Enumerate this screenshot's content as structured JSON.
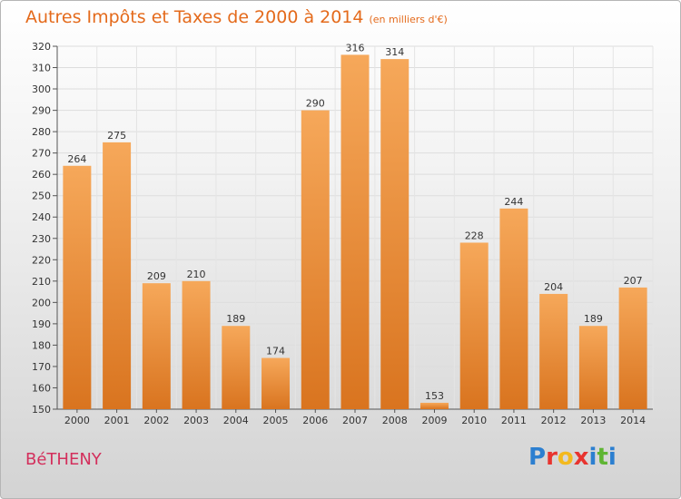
{
  "header": {
    "title": "Autres Impôts et Taxes de 2000 à 2014",
    "unit": "(en milliers d'€)"
  },
  "footer": {
    "commune": "BéTHENY",
    "brand_letters": [
      {
        "char": "P",
        "color": "#2c7fd0"
      },
      {
        "char": "r",
        "color": "#e8342f"
      },
      {
        "char": "o",
        "color": "#f3b91e"
      },
      {
        "char": "x",
        "color": "#e8342f"
      },
      {
        "char": "i",
        "color": "#2c7fd0"
      },
      {
        "char": "t",
        "color": "#5fb533"
      },
      {
        "char": "i",
        "color": "#2c7fd0"
      }
    ]
  },
  "chart_data": {
    "type": "bar",
    "title": "Autres Impôts et Taxes de 2000 à 2014",
    "subtitle": "(en milliers d'€)",
    "categories": [
      "2000",
      "2001",
      "2002",
      "2003",
      "2004",
      "2005",
      "2006",
      "2007",
      "2008",
      "2009",
      "2010",
      "2011",
      "2012",
      "2013",
      "2014"
    ],
    "values": [
      264,
      275,
      209,
      210,
      189,
      174,
      290,
      316,
      314,
      153,
      228,
      244,
      204,
      189,
      207
    ],
    "ylim": [
      150,
      320
    ],
    "yticks": [
      150,
      160,
      170,
      180,
      190,
      200,
      210,
      220,
      230,
      240,
      250,
      260,
      270,
      280,
      290,
      300,
      310,
      320
    ],
    "grid": true,
    "bar_color_top": "#f6a85a",
    "bar_color_bottom": "#d9741f",
    "title_color": "#e46a1b",
    "commune_color": "#d32f5c"
  }
}
